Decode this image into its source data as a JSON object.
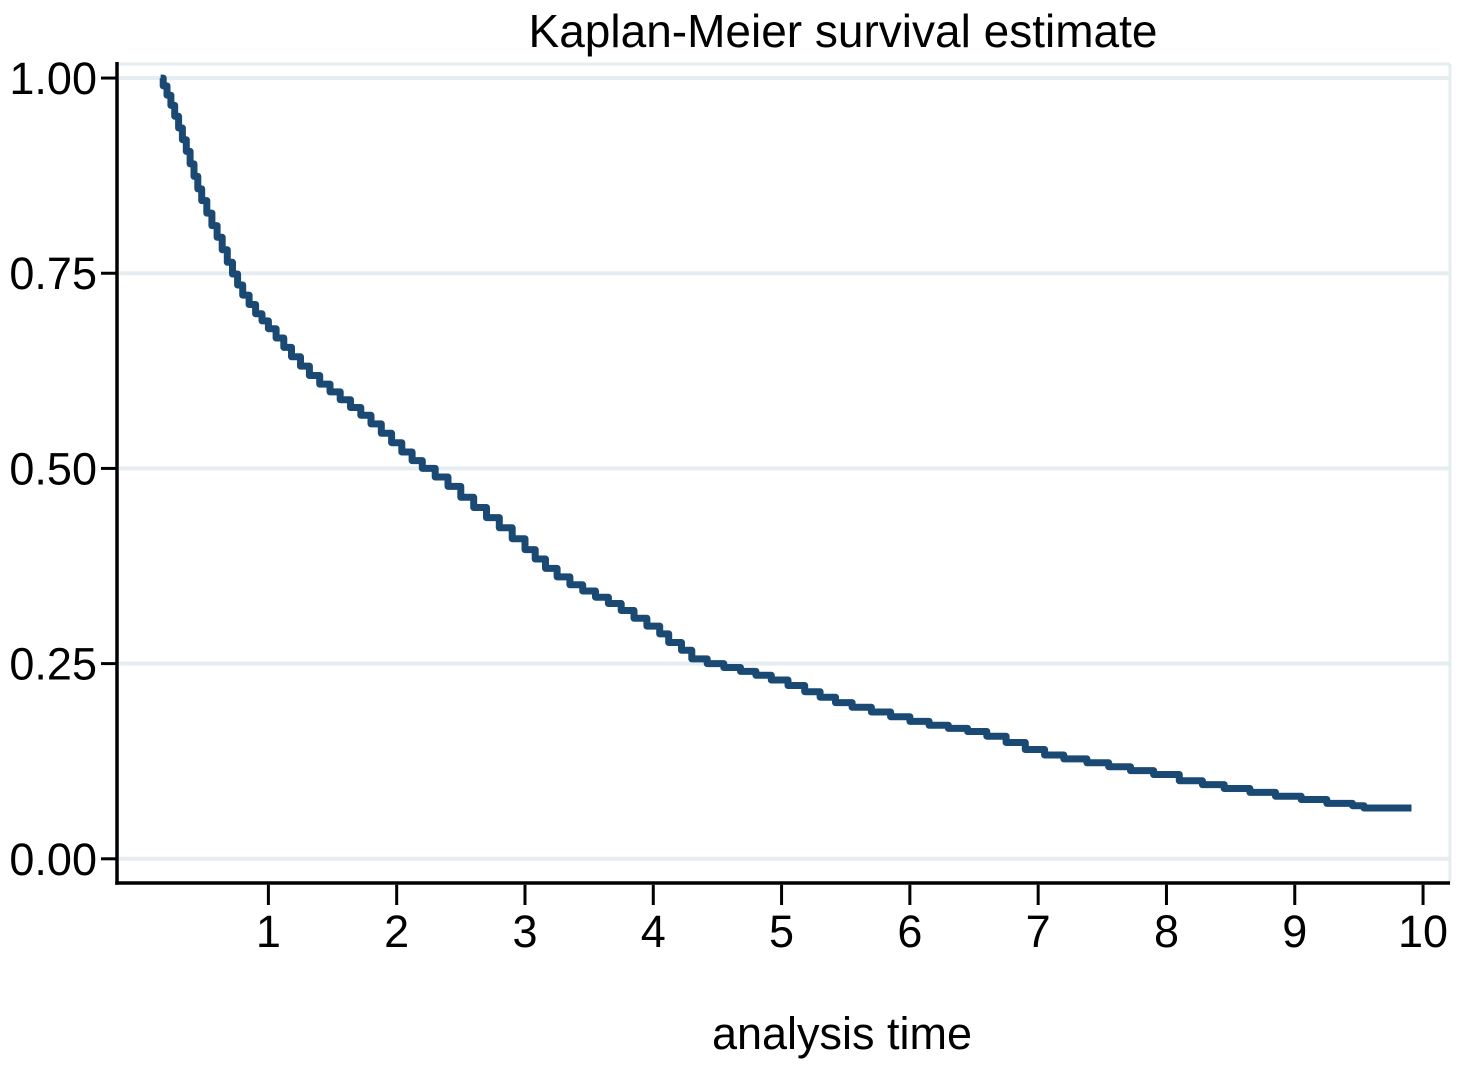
{
  "chart_data": {
    "type": "line",
    "subtype": "step-after",
    "title": "Kaplan-Meier survival estimate",
    "xlabel": "analysis time",
    "ylabel": "",
    "x_ticks": [
      1,
      2,
      3,
      4,
      5,
      6,
      7,
      8,
      9,
      10
    ],
    "y_ticks": [
      "1.00",
      "0.75",
      "0.50",
      "0.25",
      "0.00"
    ],
    "y_tick_values": [
      1.0,
      0.75,
      0.5,
      0.25,
      0.0
    ],
    "xlim": [
      -0.18,
      10.21
    ],
    "ylim": [
      -0.031,
      1.018
    ],
    "grid": "horizontal",
    "legend": "none",
    "colors": {
      "curve": "#1a4a73",
      "gridline": "#e5edf0",
      "plot_border": "#e5edf0",
      "axis": "#000000",
      "background": "#ffffff",
      "text": "#000000"
    },
    "series": [
      {
        "name": "Kaplan-Meier survival estimate",
        "color": "#1a4a73",
        "points": [
          [
            0.16,
            1.0
          ],
          [
            0.18,
            0.99
          ],
          [
            0.21,
            0.978
          ],
          [
            0.24,
            0.965
          ],
          [
            0.27,
            0.951
          ],
          [
            0.3,
            0.936
          ],
          [
            0.33,
            0.921
          ],
          [
            0.36,
            0.906
          ],
          [
            0.39,
            0.89
          ],
          [
            0.42,
            0.874
          ],
          [
            0.45,
            0.858
          ],
          [
            0.48,
            0.843
          ],
          [
            0.52,
            0.827
          ],
          [
            0.56,
            0.811
          ],
          [
            0.6,
            0.796
          ],
          [
            0.64,
            0.78
          ],
          [
            0.68,
            0.764
          ],
          [
            0.72,
            0.749
          ],
          [
            0.76,
            0.735
          ],
          [
            0.8,
            0.722
          ],
          [
            0.85,
            0.71
          ],
          [
            0.9,
            0.698
          ],
          [
            0.95,
            0.689
          ],
          [
            1.0,
            0.679
          ],
          [
            1.06,
            0.667
          ],
          [
            1.12,
            0.655
          ],
          [
            1.18,
            0.643
          ],
          [
            1.25,
            0.631
          ],
          [
            1.32,
            0.619
          ],
          [
            1.4,
            0.608
          ],
          [
            1.48,
            0.598
          ],
          [
            1.56,
            0.588
          ],
          [
            1.64,
            0.578
          ],
          [
            1.72,
            0.568
          ],
          [
            1.8,
            0.557
          ],
          [
            1.88,
            0.545
          ],
          [
            1.96,
            0.533
          ],
          [
            2.04,
            0.521
          ],
          [
            2.12,
            0.51
          ],
          [
            2.2,
            0.5
          ],
          [
            2.3,
            0.489
          ],
          [
            2.4,
            0.477
          ],
          [
            2.5,
            0.463
          ],
          [
            2.6,
            0.45
          ],
          [
            2.7,
            0.437
          ],
          [
            2.8,
            0.424
          ],
          [
            2.9,
            0.41
          ],
          [
            3.0,
            0.396
          ],
          [
            3.08,
            0.384
          ],
          [
            3.16,
            0.372
          ],
          [
            3.25,
            0.361
          ],
          [
            3.35,
            0.351
          ],
          [
            3.45,
            0.343
          ],
          [
            3.55,
            0.335
          ],
          [
            3.65,
            0.327
          ],
          [
            3.75,
            0.318
          ],
          [
            3.85,
            0.308
          ],
          [
            3.95,
            0.298
          ],
          [
            4.05,
            0.288
          ],
          [
            4.12,
            0.277
          ],
          [
            4.22,
            0.267
          ],
          [
            4.3,
            0.256
          ],
          [
            4.42,
            0.25
          ],
          [
            4.55,
            0.245
          ],
          [
            4.68,
            0.24
          ],
          [
            4.8,
            0.235
          ],
          [
            4.92,
            0.229
          ],
          [
            5.05,
            0.222
          ],
          [
            5.18,
            0.214
          ],
          [
            5.3,
            0.207
          ],
          [
            5.42,
            0.2
          ],
          [
            5.55,
            0.194
          ],
          [
            5.7,
            0.188
          ],
          [
            5.85,
            0.182
          ],
          [
            6.0,
            0.176
          ],
          [
            6.15,
            0.171
          ],
          [
            6.3,
            0.167
          ],
          [
            6.45,
            0.163
          ],
          [
            6.6,
            0.157
          ],
          [
            6.75,
            0.149
          ],
          [
            6.9,
            0.14
          ],
          [
            7.05,
            0.133
          ],
          [
            7.2,
            0.128
          ],
          [
            7.38,
            0.123
          ],
          [
            7.55,
            0.118
          ],
          [
            7.72,
            0.113
          ],
          [
            7.9,
            0.108
          ],
          [
            8.1,
            0.1
          ],
          [
            8.28,
            0.095
          ],
          [
            8.45,
            0.09
          ],
          [
            8.65,
            0.085
          ],
          [
            8.85,
            0.08
          ],
          [
            9.05,
            0.076
          ],
          [
            9.25,
            0.071
          ],
          [
            9.45,
            0.068
          ],
          [
            9.54,
            0.065
          ],
          [
            9.91,
            0.065
          ]
        ]
      }
    ]
  }
}
